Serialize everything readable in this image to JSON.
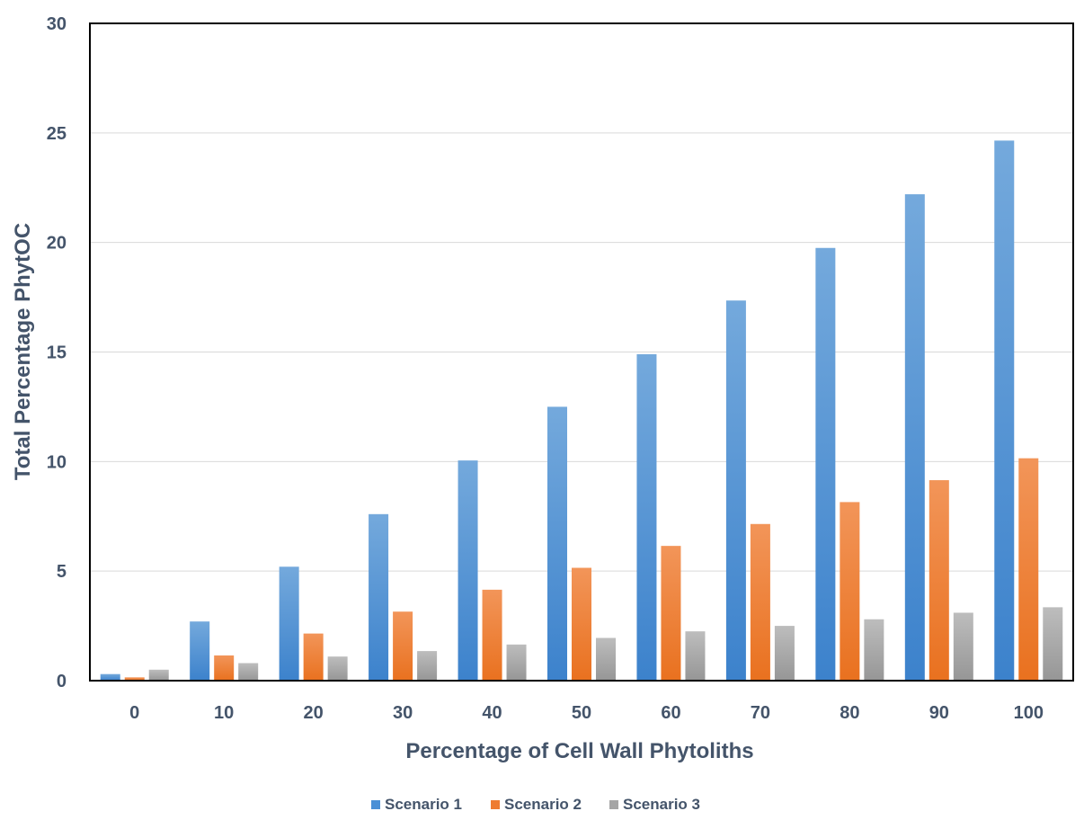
{
  "chart_data": {
    "type": "bar",
    "title": "",
    "xlabel": "Percentage of Cell Wall Phytoliths",
    "ylabel": "Total Percentage PhytOC",
    "ylim": [
      0,
      30
    ],
    "yticks": [
      "0",
      "5",
      "10",
      "15",
      "20",
      "25",
      "30"
    ],
    "categories": [
      "0",
      "10",
      "20",
      "30",
      "40",
      "50",
      "60",
      "70",
      "80",
      "90",
      "100"
    ],
    "series": [
      {
        "name": "Scenario 1",
        "color": "#4a90d6",
        "values": [
          0.3,
          2.7,
          5.2,
          7.6,
          10.05,
          12.5,
          14.9,
          17.35,
          19.75,
          22.2,
          24.65
        ]
      },
      {
        "name": "Scenario 2",
        "color": "#ee7b30",
        "values": [
          0.15,
          1.15,
          2.15,
          3.15,
          4.15,
          5.15,
          6.15,
          7.15,
          8.15,
          9.15,
          10.15
        ]
      },
      {
        "name": "Scenario 3",
        "color": "#a5a5a5",
        "values": [
          0.5,
          0.8,
          1.1,
          1.35,
          1.65,
          1.95,
          2.25,
          2.5,
          2.8,
          3.1,
          3.35
        ]
      }
    ],
    "grid": true,
    "legend": "bottom"
  }
}
